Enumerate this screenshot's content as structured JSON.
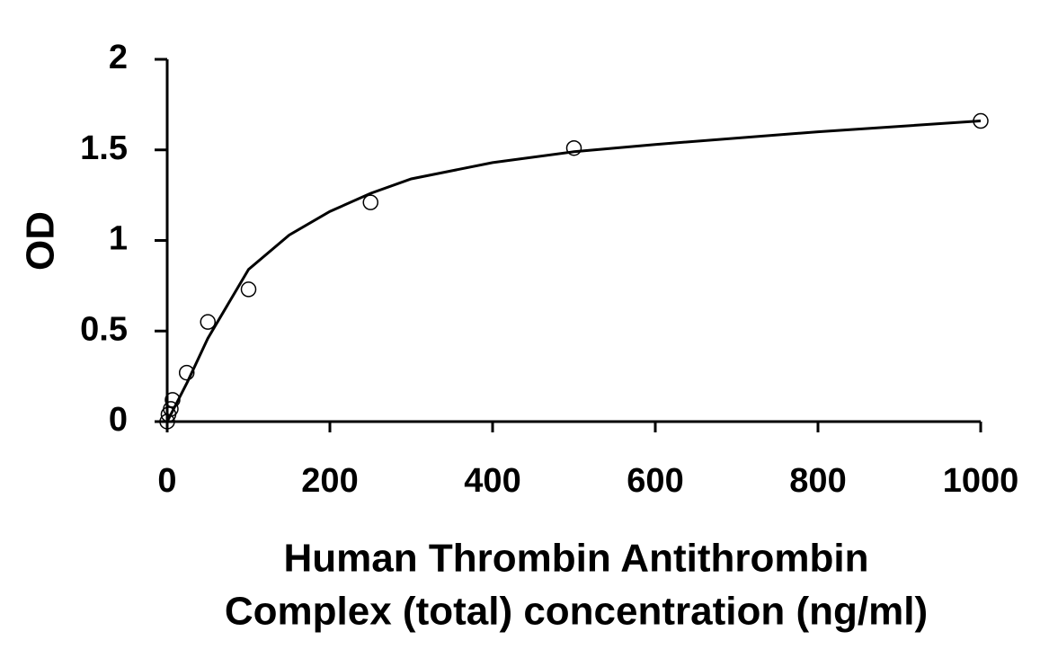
{
  "chart_data": {
    "type": "scatter",
    "ylabel": "OD",
    "xlabel": [
      "Human Thrombin Antithrombin",
      "Complex (total) concentration (ng/ml)"
    ],
    "xlim": [
      0,
      1000
    ],
    "xticks": [
      0,
      200,
      400,
      600,
      800,
      1000
    ],
    "ylim": [
      0,
      2
    ],
    "yticks": [
      0,
      0.5,
      1,
      1.5,
      2
    ],
    "series": [
      {
        "mode": "markers",
        "color": "#000000",
        "x": [
          0,
          1.6,
          4.4,
          6.6,
          24,
          50,
          100,
          250,
          500,
          1000
        ],
        "values": [
          0,
          0.04,
          0.07,
          0.12,
          0.27,
          0.55,
          0.73,
          1.21,
          1.51,
          1.66
        ]
      },
      {
        "mode": "line",
        "color": "#000000",
        "x": [
          0,
          25,
          50,
          100,
          150,
          200,
          250,
          300,
          400,
          500,
          600,
          800,
          1000
        ],
        "values": [
          0,
          0.22,
          0.46,
          0.84,
          1.03,
          1.16,
          1.26,
          1.34,
          1.43,
          1.49,
          1.53,
          1.6,
          1.66
        ]
      }
    ]
  }
}
